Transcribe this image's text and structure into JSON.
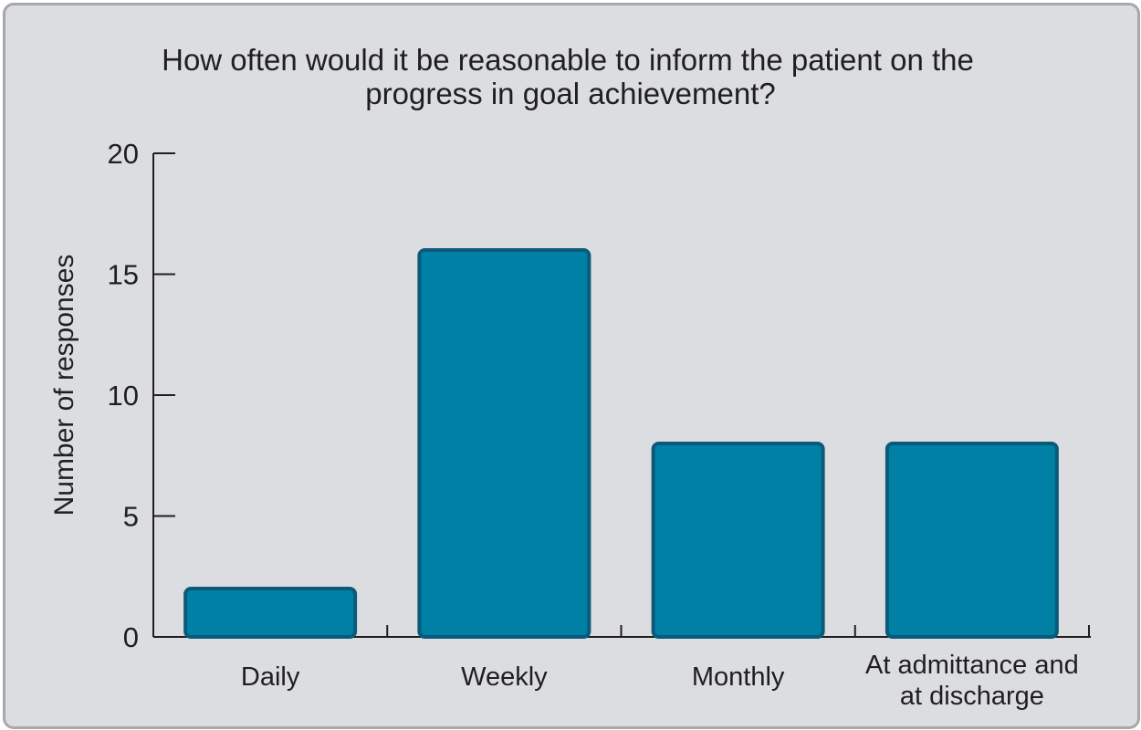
{
  "colors": {
    "background": "#dcdde0",
    "frame_border": "#a7a8aa",
    "bar_fill": "#0080a4",
    "bar_stroke": "#0b5a7a",
    "text": "#1f1f1f"
  },
  "chart_data": {
    "type": "bar",
    "title_lines": [
      "How often would it be reasonable to inform the patient on the",
      "progress in goal achievement?"
    ],
    "ylabel": "Number of responses",
    "xlabel": "",
    "categories": [
      [
        "Daily"
      ],
      [
        "Weekly"
      ],
      [
        "Monthly"
      ],
      [
        "At admittance and",
        "at discharge"
      ]
    ],
    "values": [
      2,
      16,
      8,
      8
    ],
    "ylim": [
      0,
      20
    ],
    "yticks": [
      0,
      5,
      10,
      15,
      20
    ],
    "grid": false,
    "legend": "none"
  }
}
